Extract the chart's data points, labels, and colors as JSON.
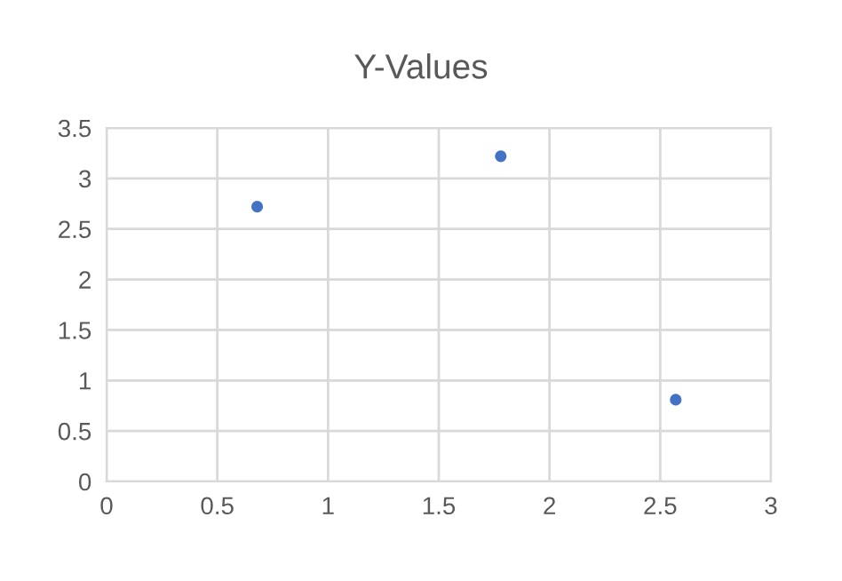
{
  "chart_data": {
    "type": "scatter",
    "title": "Y-Values",
    "x": [
      0.68,
      1.78,
      2.57
    ],
    "series": [
      {
        "color": "#4472c4",
        "values": [
          2.72,
          3.22,
          0.81
        ]
      }
    ],
    "xlim": [
      0,
      3
    ],
    "xticks": [
      0,
      {
        "value": 0.5,
        "label": "0.5"
      },
      1,
      {
        "value": 1.5,
        "label": "1.5"
      },
      2,
      {
        "value": 2.5,
        "label": "2.5"
      },
      3
    ],
    "ylim": [
      0,
      3.5
    ],
    "yticks": [
      0,
      {
        "value": 0.5,
        "label": "0.5"
      },
      1,
      {
        "value": 1.5,
        "label": "1.5"
      },
      2,
      {
        "value": 2.5,
        "label": "2.5"
      },
      3,
      {
        "value": 3.5,
        "label": "3.5"
      }
    ],
    "grid": true,
    "marker": "circle"
  }
}
